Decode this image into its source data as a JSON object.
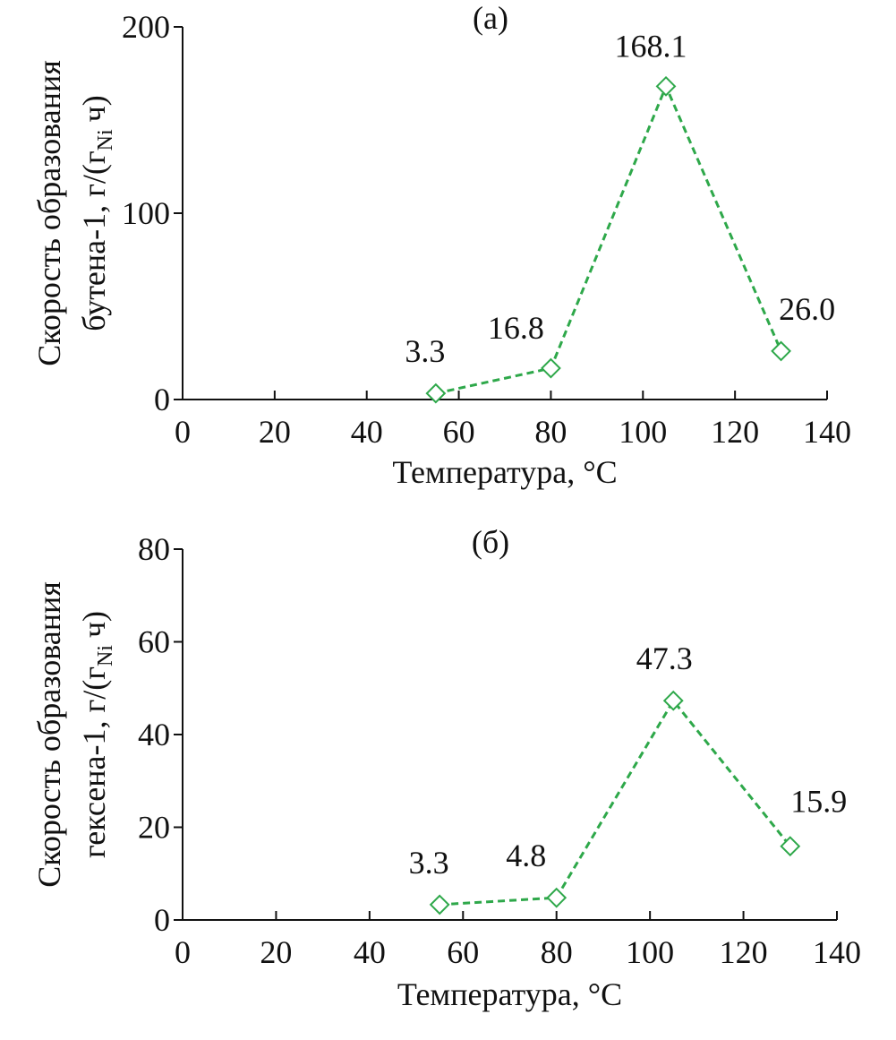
{
  "chart_data": [
    {
      "type": "line",
      "title": "(a)",
      "x_label": "Температура, °C",
      "y_label": [
        "Скорость образования",
        "бутена-1, г/(г",
        "Ni",
        "ч)"
      ],
      "x": [
        55,
        80,
        105,
        130
      ],
      "series": [
        {
          "color": "#2ea84a",
          "values": [
            3.3,
            16.8,
            168.1,
            26
          ],
          "value_labels": [
            "3.3",
            "16.8",
            "168.1",
            "26.0"
          ]
        }
      ],
      "xlim": [
        0,
        140
      ],
      "xticks": [
        0,
        20,
        40,
        60,
        80,
        100,
        120,
        140
      ],
      "ylim": [
        0,
        200
      ],
      "yticks": [
        0,
        100,
        200
      ]
    },
    {
      "type": "line",
      "title": "(б)",
      "x_label": "Температура, °C",
      "y_label": [
        "Скорость образования",
        "гексена-1, г/(г",
        "Ni",
        "ч)"
      ],
      "x": [
        55,
        80,
        105,
        130
      ],
      "series": [
        {
          "color": "#2ea84a",
          "values": [
            3.3,
            4.8,
            47.3,
            15.9
          ],
          "value_labels": [
            "3.3",
            "4.8",
            "47.3",
            "15.9"
          ]
        }
      ],
      "xlim": [
        0,
        140
      ],
      "xticks": [
        0,
        20,
        40,
        60,
        80,
        100,
        120,
        140
      ],
      "ylim": [
        0,
        80
      ],
      "yticks": [
        0,
        20,
        40,
        60,
        80
      ]
    }
  ]
}
